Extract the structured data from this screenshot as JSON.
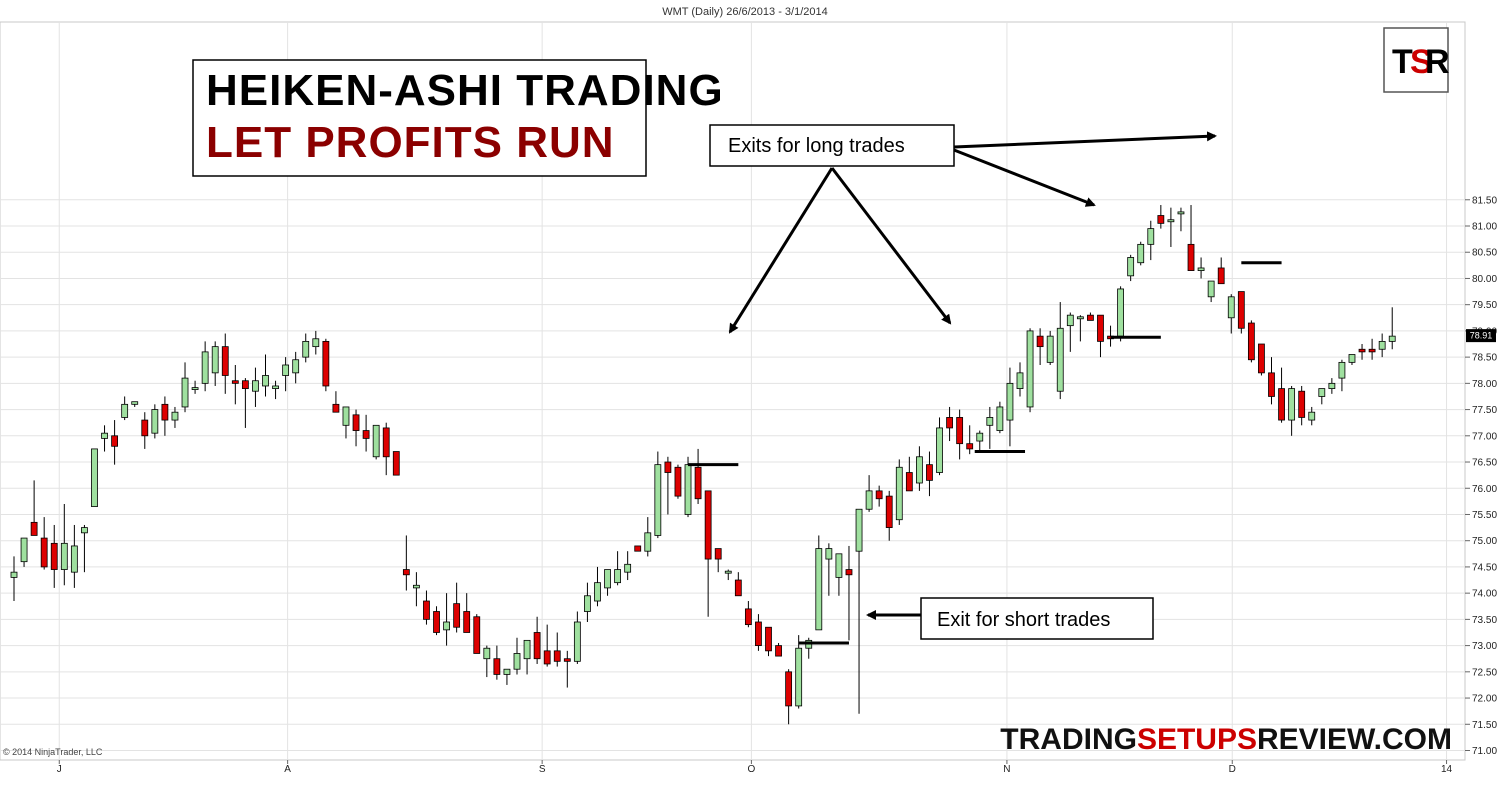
{
  "chart_data": {
    "type": "candlestick",
    "title": "WMT (Daily)  26/6/2013 - 3/1/2014",
    "heiken_ashi": true,
    "ylim": [
      70.95,
      81.8
    ],
    "y_ticks": [
      "71.00",
      "71.50",
      "72.00",
      "72.50",
      "73.00",
      "73.50",
      "74.00",
      "74.50",
      "75.00",
      "75.50",
      "76.00",
      "76.50",
      "77.00",
      "77.50",
      "78.00",
      "78.50",
      "79.00",
      "79.50",
      "80.00",
      "80.50",
      "81.00",
      "81.50"
    ],
    "x_ticks": [
      "J",
      "A",
      "S",
      "O",
      "N",
      "D",
      "14"
    ],
    "last_price": "78.91",
    "grid": true,
    "colors": {
      "up": "#9fe09f",
      "down": "#dd0000",
      "wick": "#000000",
      "grid": "#e3e3e3",
      "headline_accent": "#8b0000"
    },
    "candles": [
      {
        "o": 74.3,
        "h": 74.7,
        "l": 73.85,
        "c": 74.4
      },
      {
        "o": 74.6,
        "h": 75.05,
        "l": 74.5,
        "c": 75.05
      },
      {
        "o": 75.35,
        "h": 76.15,
        "l": 75.2,
        "c": 75.1
      },
      {
        "o": 75.05,
        "h": 75.45,
        "l": 74.45,
        "c": 74.5
      },
      {
        "o": 74.95,
        "h": 75.3,
        "l": 74.1,
        "c": 74.45
      },
      {
        "o": 74.45,
        "h": 75.7,
        "l": 74.15,
        "c": 74.95
      },
      {
        "o": 74.4,
        "h": 75.3,
        "l": 74.1,
        "c": 74.9
      },
      {
        "o": 75.15,
        "h": 75.3,
        "l": 74.4,
        "c": 75.25
      },
      {
        "o": 75.65,
        "h": 76.75,
        "l": 75.65,
        "c": 76.75
      },
      {
        "o": 76.95,
        "h": 77.2,
        "l": 76.7,
        "c": 77.05
      },
      {
        "o": 77.0,
        "h": 77.3,
        "l": 76.45,
        "c": 76.8
      },
      {
        "o": 77.35,
        "h": 77.75,
        "l": 77.3,
        "c": 77.6
      },
      {
        "o": 77.6,
        "h": 77.65,
        "l": 77.55,
        "c": 77.65
      },
      {
        "o": 77.3,
        "h": 77.45,
        "l": 76.75,
        "c": 77.0
      },
      {
        "o": 77.05,
        "h": 77.6,
        "l": 76.95,
        "c": 77.5
      },
      {
        "o": 77.6,
        "h": 77.75,
        "l": 77.0,
        "c": 77.3
      },
      {
        "o": 77.3,
        "h": 77.55,
        "l": 77.15,
        "c": 77.45
      },
      {
        "o": 77.55,
        "h": 78.4,
        "l": 77.45,
        "c": 78.1
      },
      {
        "o": 77.9,
        "h": 78.05,
        "l": 77.8,
        "c": 77.9
      },
      {
        "o": 78.0,
        "h": 78.8,
        "l": 77.85,
        "c": 78.6
      },
      {
        "o": 78.2,
        "h": 78.8,
        "l": 77.95,
        "c": 78.7
      },
      {
        "o": 78.7,
        "h": 78.95,
        "l": 77.8,
        "c": 78.15
      },
      {
        "o": 78.05,
        "h": 78.35,
        "l": 77.6,
        "c": 78.0
      },
      {
        "o": 78.05,
        "h": 78.1,
        "l": 77.15,
        "c": 77.9
      },
      {
        "o": 77.85,
        "h": 78.3,
        "l": 77.55,
        "c": 78.05
      },
      {
        "o": 77.95,
        "h": 78.55,
        "l": 77.75,
        "c": 78.15
      },
      {
        "o": 77.9,
        "h": 78.05,
        "l": 77.7,
        "c": 77.95
      },
      {
        "o": 78.15,
        "h": 78.5,
        "l": 77.85,
        "c": 78.35
      },
      {
        "o": 78.2,
        "h": 78.6,
        "l": 78.0,
        "c": 78.45
      },
      {
        "o": 78.5,
        "h": 78.95,
        "l": 78.4,
        "c": 78.8
      },
      {
        "o": 78.7,
        "h": 79.0,
        "l": 78.55,
        "c": 78.85
      },
      {
        "o": 78.8,
        "h": 78.85,
        "l": 77.85,
        "c": 77.95
      },
      {
        "o": 77.6,
        "h": 77.85,
        "l": 77.5,
        "c": 77.45
      },
      {
        "o": 77.2,
        "h": 77.5,
        "l": 76.95,
        "c": 77.55
      },
      {
        "o": 77.4,
        "h": 77.5,
        "l": 76.8,
        "c": 77.1
      },
      {
        "o": 77.1,
        "h": 77.4,
        "l": 76.7,
        "c": 76.95
      },
      {
        "o": 76.6,
        "h": 77.2,
        "l": 76.55,
        "c": 77.2
      },
      {
        "o": 77.15,
        "h": 77.25,
        "l": 76.25,
        "c": 76.6
      },
      {
        "o": 76.7,
        "h": 76.7,
        "l": 76.25,
        "c": 76.25
      },
      {
        "o": 74.45,
        "h": 75.1,
        "l": 74.05,
        "c": 74.35
      },
      {
        "o": 74.1,
        "h": 74.4,
        "l": 73.75,
        "c": 74.15
      },
      {
        "o": 73.85,
        "h": 74.05,
        "l": 73.4,
        "c": 73.5
      },
      {
        "o": 73.65,
        "h": 73.75,
        "l": 73.2,
        "c": 73.25
      },
      {
        "o": 73.3,
        "h": 74.0,
        "l": 73.0,
        "c": 73.45
      },
      {
        "o": 73.8,
        "h": 74.2,
        "l": 73.25,
        "c": 73.35
      },
      {
        "o": 73.65,
        "h": 74.0,
        "l": 73.25,
        "c": 73.25
      },
      {
        "o": 73.55,
        "h": 73.6,
        "l": 72.85,
        "c": 72.85
      },
      {
        "o": 72.75,
        "h": 73.0,
        "l": 72.4,
        "c": 72.95
      },
      {
        "o": 72.75,
        "h": 73.0,
        "l": 72.35,
        "c": 72.45
      },
      {
        "o": 72.45,
        "h": 72.5,
        "l": 72.25,
        "c": 72.55
      },
      {
        "o": 72.55,
        "h": 73.15,
        "l": 72.45,
        "c": 72.85
      },
      {
        "o": 72.75,
        "h": 73.0,
        "l": 72.45,
        "c": 73.1
      },
      {
        "o": 73.25,
        "h": 73.55,
        "l": 72.65,
        "c": 72.75
      },
      {
        "o": 72.9,
        "h": 73.4,
        "l": 72.6,
        "c": 72.65
      },
      {
        "o": 72.9,
        "h": 73.25,
        "l": 72.6,
        "c": 72.7
      },
      {
        "o": 72.75,
        "h": 72.9,
        "l": 72.2,
        "c": 72.7
      },
      {
        "o": 72.7,
        "h": 73.65,
        "l": 72.65,
        "c": 73.45
      },
      {
        "o": 73.65,
        "h": 74.2,
        "l": 73.45,
        "c": 73.95
      },
      {
        "o": 73.85,
        "h": 74.5,
        "l": 73.75,
        "c": 74.2
      },
      {
        "o": 74.1,
        "h": 74.4,
        "l": 73.95,
        "c": 74.45
      },
      {
        "o": 74.2,
        "h": 74.8,
        "l": 74.15,
        "c": 74.45
      },
      {
        "o": 74.4,
        "h": 74.8,
        "l": 74.25,
        "c": 74.55
      },
      {
        "o": 74.9,
        "h": 74.85,
        "l": 74.8,
        "c": 74.8
      },
      {
        "o": 74.8,
        "h": 75.45,
        "l": 74.7,
        "c": 75.15
      },
      {
        "o": 75.1,
        "h": 76.7,
        "l": 75.05,
        "c": 76.45
      },
      {
        "o": 76.5,
        "h": 76.6,
        "l": 75.5,
        "c": 76.3
      },
      {
        "o": 76.4,
        "h": 76.45,
        "l": 75.8,
        "c": 75.85
      },
      {
        "o": 75.5,
        "h": 76.6,
        "l": 75.45,
        "c": 76.45
      },
      {
        "o": 76.4,
        "h": 76.75,
        "l": 75.7,
        "c": 75.8
      },
      {
        "o": 75.95,
        "h": 75.95,
        "l": 73.55,
        "c": 74.65
      },
      {
        "o": 74.85,
        "h": 74.85,
        "l": 74.4,
        "c": 74.65
      },
      {
        "o": 74.4,
        "h": 74.45,
        "l": 74.25,
        "c": 74.4
      },
      {
        "o": 74.25,
        "h": 74.4,
        "l": 73.95,
        "c": 73.95
      },
      {
        "o": 73.7,
        "h": 73.85,
        "l": 73.35,
        "c": 73.4
      },
      {
        "o": 73.45,
        "h": 73.6,
        "l": 72.9,
        "c": 73.0
      },
      {
        "o": 73.35,
        "h": 73.3,
        "l": 72.8,
        "c": 72.9
      },
      {
        "o": 73.0,
        "h": 73.05,
        "l": 72.8,
        "c": 72.8
      },
      {
        "o": 72.5,
        "h": 72.55,
        "l": 71.5,
        "c": 71.85
      },
      {
        "o": 71.85,
        "h": 73.2,
        "l": 71.8,
        "c": 72.95
      },
      {
        "o": 72.95,
        "h": 73.15,
        "l": 72.75,
        "c": 73.1
      },
      {
        "o": 73.3,
        "h": 75.1,
        "l": 73.3,
        "c": 74.85
      },
      {
        "o": 74.65,
        "h": 74.95,
        "l": 73.95,
        "c": 74.85
      },
      {
        "o": 74.3,
        "h": 74.75,
        "l": 73.95,
        "c": 74.75
      },
      {
        "o": 74.45,
        "h": 74.9,
        "l": 73.1,
        "c": 74.35
      },
      {
        "o": 74.8,
        "h": 75.5,
        "l": 71.7,
        "c": 75.6
      },
      {
        "o": 75.6,
        "h": 76.25,
        "l": 75.55,
        "c": 75.95
      },
      {
        "o": 75.95,
        "h": 76.05,
        "l": 75.65,
        "c": 75.8
      },
      {
        "o": 75.85,
        "h": 75.95,
        "l": 75.0,
        "c": 75.25
      },
      {
        "o": 75.4,
        "h": 76.55,
        "l": 75.3,
        "c": 76.4
      },
      {
        "o": 76.3,
        "h": 76.6,
        "l": 75.95,
        "c": 75.95
      },
      {
        "o": 76.1,
        "h": 76.8,
        "l": 75.95,
        "c": 76.6
      },
      {
        "o": 76.45,
        "h": 76.7,
        "l": 75.85,
        "c": 76.15
      },
      {
        "o": 76.3,
        "h": 77.35,
        "l": 76.25,
        "c": 77.15
      },
      {
        "o": 77.35,
        "h": 77.55,
        "l": 76.9,
        "c": 77.15
      },
      {
        "o": 77.35,
        "h": 77.5,
        "l": 76.55,
        "c": 76.85
      },
      {
        "o": 76.85,
        "h": 77.2,
        "l": 76.65,
        "c": 76.75
      },
      {
        "o": 76.9,
        "h": 77.1,
        "l": 76.7,
        "c": 77.05
      },
      {
        "o": 77.2,
        "h": 77.55,
        "l": 76.75,
        "c": 77.35
      },
      {
        "o": 77.1,
        "h": 77.65,
        "l": 77.05,
        "c": 77.55
      },
      {
        "o": 77.3,
        "h": 78.3,
        "l": 76.8,
        "c": 78.0
      },
      {
        "o": 77.9,
        "h": 78.4,
        "l": 77.75,
        "c": 78.2
      },
      {
        "o": 77.55,
        "h": 79.05,
        "l": 77.45,
        "c": 79.0
      },
      {
        "o": 78.9,
        "h": 79.05,
        "l": 78.35,
        "c": 78.7
      },
      {
        "o": 78.4,
        "h": 79.0,
        "l": 78.35,
        "c": 78.9
      },
      {
        "o": 77.85,
        "h": 79.55,
        "l": 77.7,
        "c": 79.05
      },
      {
        "o": 79.1,
        "h": 79.35,
        "l": 78.6,
        "c": 79.3
      },
      {
        "o": 79.25,
        "h": 79.3,
        "l": 78.8,
        "c": 79.25
      },
      {
        "o": 79.3,
        "h": 79.35,
        "l": 79.2,
        "c": 79.2
      },
      {
        "o": 79.3,
        "h": 79.3,
        "l": 78.5,
        "c": 78.8
      },
      {
        "o": 78.9,
        "h": 79.1,
        "l": 78.7,
        "c": 78.85
      },
      {
        "o": 78.9,
        "h": 79.85,
        "l": 78.8,
        "c": 79.8
      },
      {
        "o": 80.05,
        "h": 80.45,
        "l": 79.95,
        "c": 80.4
      },
      {
        "o": 80.3,
        "h": 80.7,
        "l": 80.25,
        "c": 80.65
      },
      {
        "o": 80.65,
        "h": 81.1,
        "l": 80.35,
        "c": 80.95
      },
      {
        "o": 81.2,
        "h": 81.4,
        "l": 80.95,
        "c": 81.05
      },
      {
        "o": 81.1,
        "h": 81.35,
        "l": 80.6,
        "c": 81.1
      },
      {
        "o": 81.25,
        "h": 81.35,
        "l": 80.9,
        "c": 81.25
      },
      {
        "o": 80.65,
        "h": 81.4,
        "l": 80.2,
        "c": 80.15
      },
      {
        "o": 80.15,
        "h": 80.4,
        "l": 80.0,
        "c": 80.2
      },
      {
        "o": 79.65,
        "h": 79.9,
        "l": 79.55,
        "c": 79.95
      },
      {
        "o": 80.2,
        "h": 80.4,
        "l": 79.9,
        "c": 79.9
      },
      {
        "o": 79.25,
        "h": 79.7,
        "l": 78.95,
        "c": 79.65
      },
      {
        "o": 79.75,
        "h": 79.75,
        "l": 78.95,
        "c": 79.05
      },
      {
        "o": 79.15,
        "h": 79.2,
        "l": 78.4,
        "c": 78.45
      },
      {
        "o": 78.75,
        "h": 78.75,
        "l": 78.15,
        "c": 78.2
      },
      {
        "o": 78.2,
        "h": 78.5,
        "l": 77.6,
        "c": 77.75
      },
      {
        "o": 77.9,
        "h": 78.3,
        "l": 77.25,
        "c": 77.3
      },
      {
        "o": 77.3,
        "h": 77.95,
        "l": 77.0,
        "c": 77.9
      },
      {
        "o": 77.85,
        "h": 77.95,
        "l": 77.2,
        "c": 77.35
      },
      {
        "o": 77.3,
        "h": 77.55,
        "l": 77.2,
        "c": 77.45
      },
      {
        "o": 77.75,
        "h": 77.9,
        "l": 77.6,
        "c": 77.9
      },
      {
        "o": 77.9,
        "h": 78.1,
        "l": 77.8,
        "c": 78.0
      },
      {
        "o": 78.1,
        "h": 78.45,
        "l": 77.85,
        "c": 78.4
      },
      {
        "o": 78.4,
        "h": 78.55,
        "l": 78.35,
        "c": 78.55
      },
      {
        "o": 78.65,
        "h": 78.75,
        "l": 78.45,
        "c": 78.6
      },
      {
        "o": 78.65,
        "h": 78.85,
        "l": 78.45,
        "c": 78.6
      },
      {
        "o": 78.65,
        "h": 78.95,
        "l": 78.5,
        "c": 78.8
      },
      {
        "o": 78.8,
        "h": 79.45,
        "l": 78.65,
        "c": 78.9
      }
    ],
    "annotations": {
      "long_exits_label": "Exits for long trades",
      "short_exit_label": "Exit for short trades"
    },
    "headline": {
      "line1": "HEIKEN-ASHI TRADING",
      "line2": "LET PROFITS RUN"
    },
    "logo": {
      "t": "T",
      "s": "S",
      "r": "R"
    },
    "brand": {
      "part1": "TRADING",
      "part2": "SETUPS",
      "part3": "REVIEW.COM"
    },
    "copyright": "© 2014 NinjaTrader, LLC"
  }
}
